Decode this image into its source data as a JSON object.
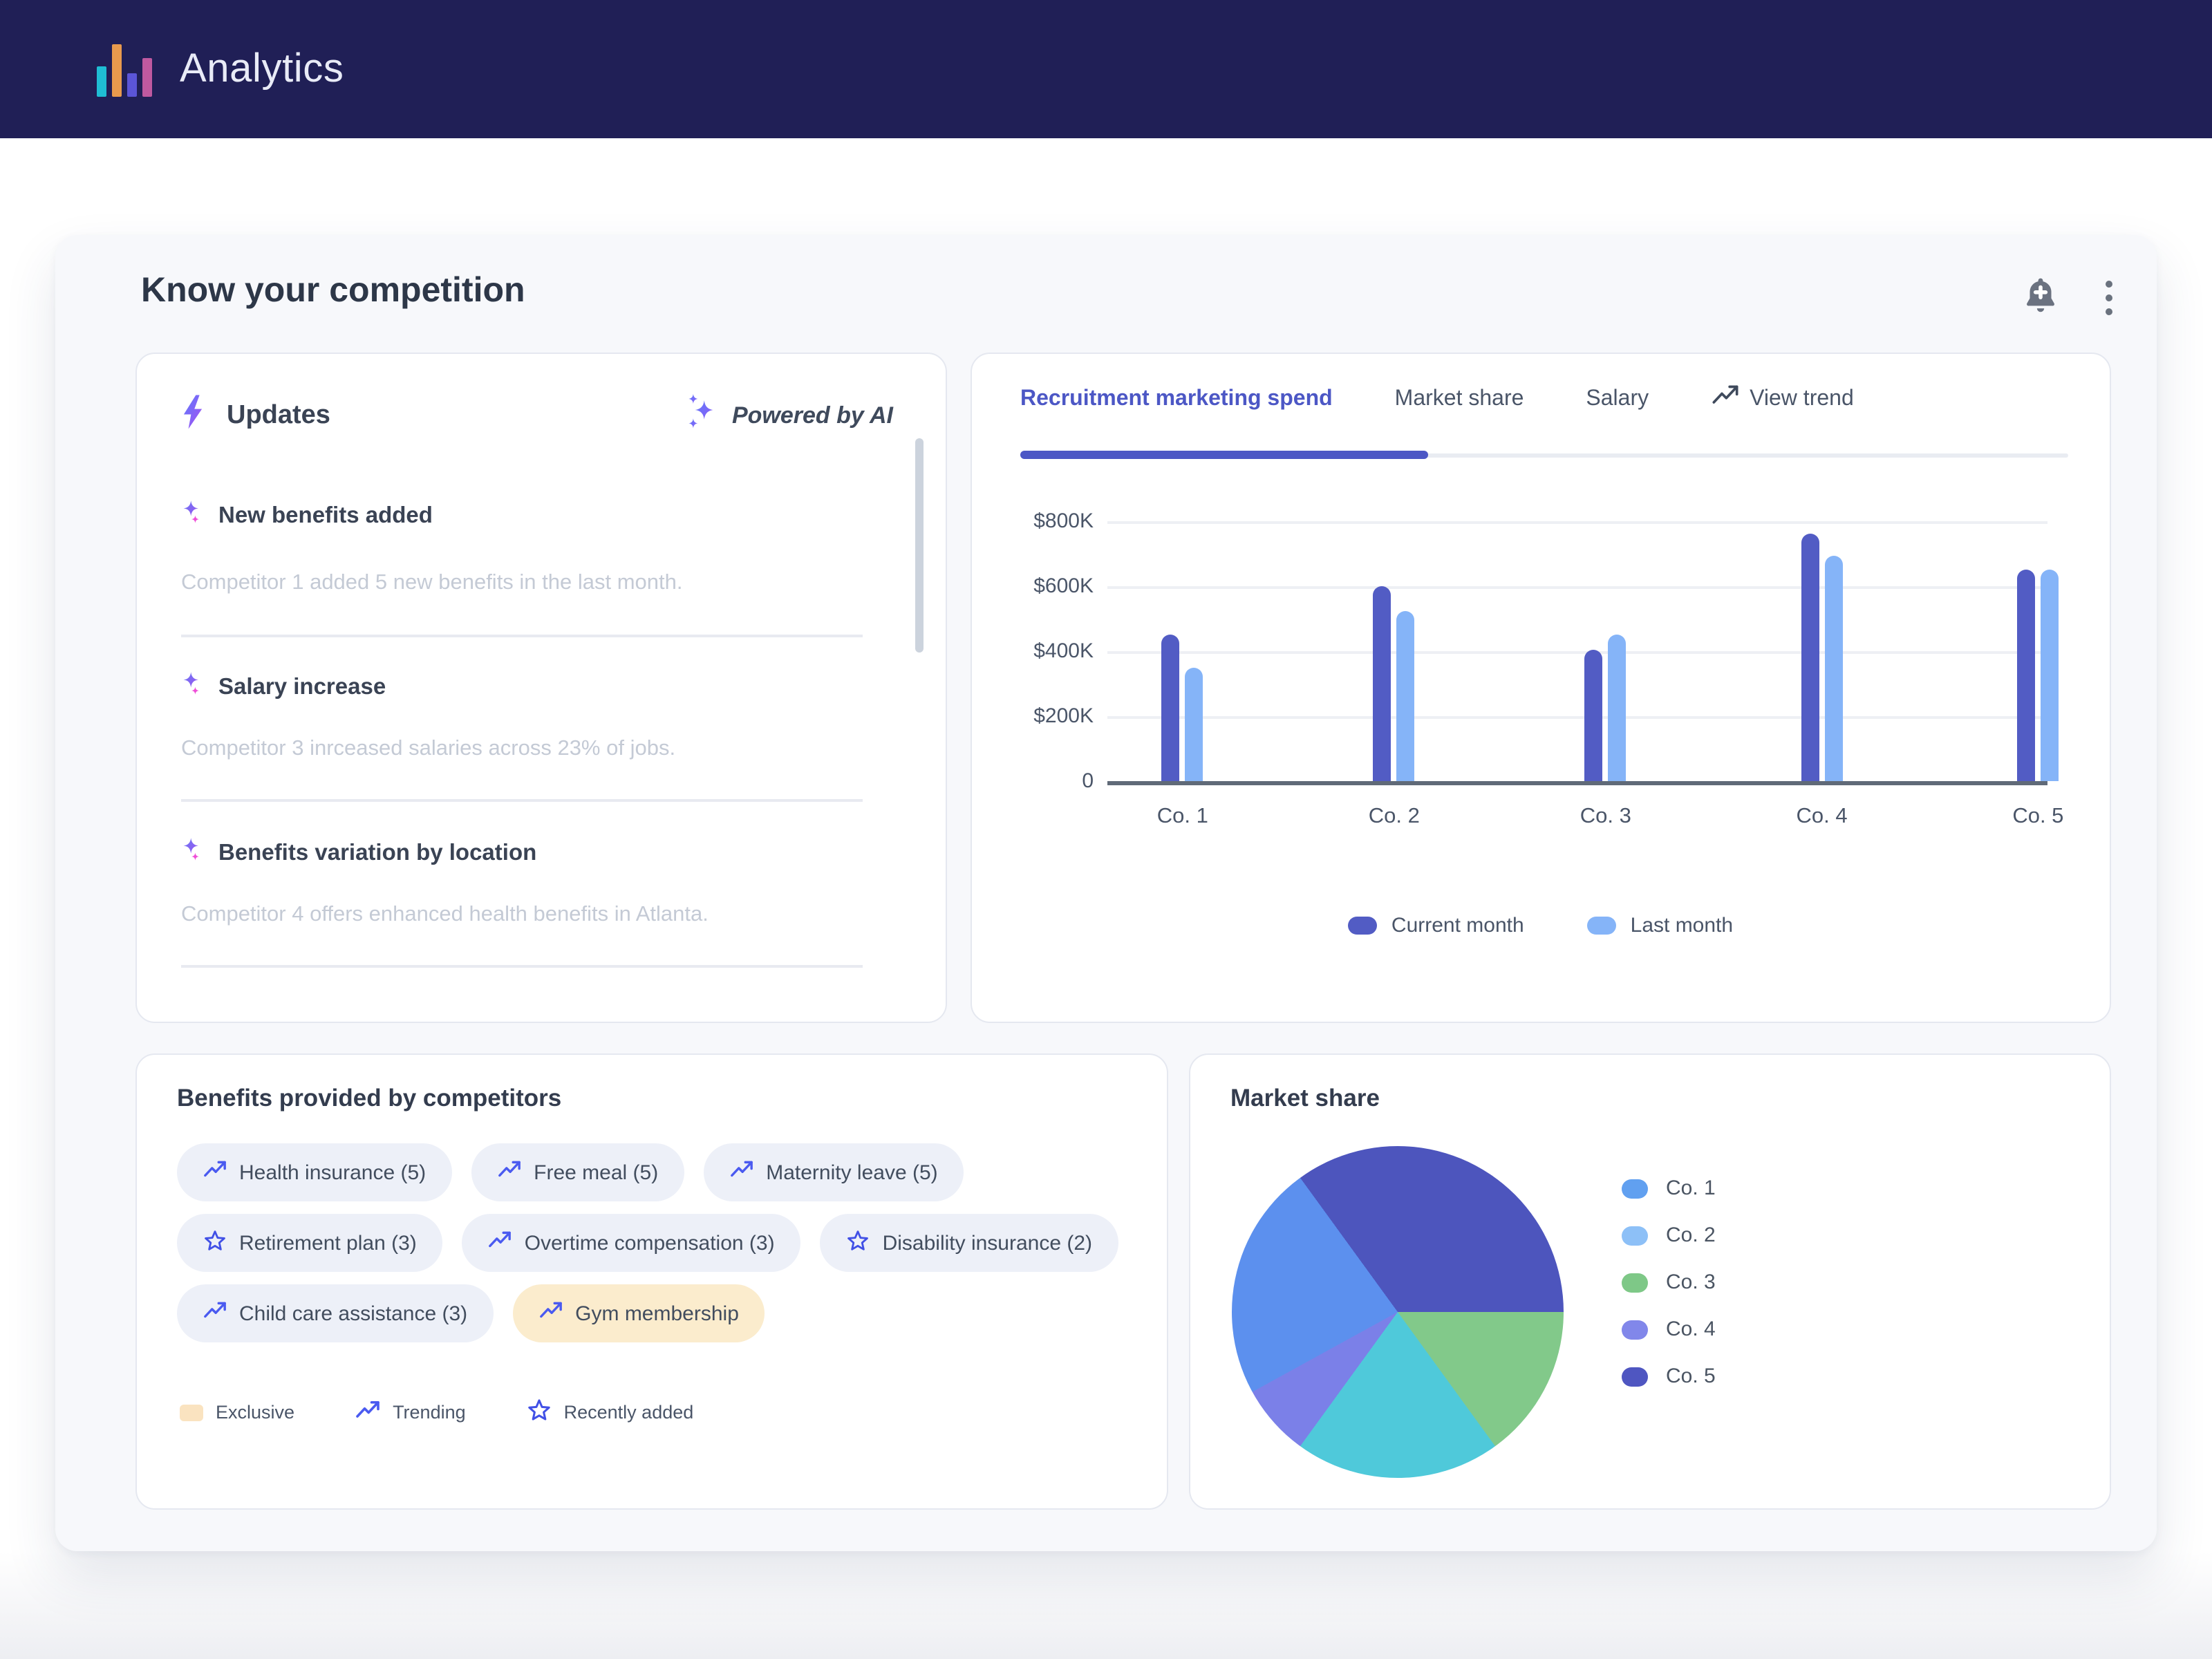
{
  "header": {
    "app_title": "Analytics",
    "logo_bar_colors": [
      "#1fbdd4",
      "#e89a4d",
      "#5b55d7",
      "#bf59a0"
    ]
  },
  "card": {
    "title": "Know your competition"
  },
  "updates": {
    "title": "Updates",
    "powered_by": "Powered by AI",
    "items": [
      {
        "title": "New benefits added",
        "description": "Competitor 1 added 5 new benefits in the last month."
      },
      {
        "title": "Salary increase",
        "description": "Competitor 3 inrceased salaries across 23% of jobs."
      },
      {
        "title": "Benefits variation by location",
        "description": "Competitor 4 offers enhanced health benefits in Atlanta."
      }
    ]
  },
  "tabs": {
    "items": [
      {
        "label": "Recruitment marketing spend",
        "active": true
      },
      {
        "label": "Market share",
        "active": false
      },
      {
        "label": "Salary",
        "active": false
      },
      {
        "label": "View trend",
        "active": false,
        "icon": "trending-up"
      }
    ]
  },
  "chart_data": [
    {
      "type": "bar",
      "title": "Recruitment marketing spend",
      "categories": [
        "Co. 1",
        "Co. 2",
        "Co. 3",
        "Co. 4",
        "Co. 5"
      ],
      "series": [
        {
          "name": "Current month",
          "color": "#525cc4",
          "values": [
            450000,
            600000,
            405000,
            760000,
            650000
          ]
        },
        {
          "name": "Last month",
          "color": "#85b4f8",
          "values": [
            350000,
            525000,
            450000,
            695000,
            650000
          ]
        }
      ],
      "yticks": [
        "$800K",
        "$600K",
        "$400K",
        "$200K",
        "0"
      ],
      "ylim": [
        0,
        800000
      ],
      "grid": true,
      "legend_position": "bottom"
    },
    {
      "type": "pie",
      "title": "Market share",
      "labels": [
        "Co. 1",
        "Co. 2",
        "Co. 3",
        "Co. 4",
        "Co. 5"
      ],
      "values_pct": [
        23,
        20,
        15,
        7,
        35
      ],
      "legend_colors": [
        "#61a0f0",
        "#8dc0f7",
        "#7ec887",
        "#8187ea",
        "#4f56c1"
      ],
      "start_angle_deg": 90,
      "slices": [
        {
          "label": "Co. 3",
          "pct": 15,
          "color": "#82c98a"
        },
        {
          "label": "Co. 2",
          "pct": 20,
          "color": "#4fc9da"
        },
        {
          "label": "Co. 4",
          "pct": 7,
          "color": "#7b80e8"
        },
        {
          "label": "Co. 1",
          "pct": 23,
          "color": "#5c90ee"
        },
        {
          "label": "Co. 5",
          "pct": 35,
          "color": "#4d55bd"
        }
      ],
      "legend_position": "right"
    }
  ],
  "benefits": {
    "title": "Benefits provided by competitors",
    "chips": [
      {
        "label": "Health insurance (5)",
        "icon": "trending",
        "style": "default"
      },
      {
        "label": "Free meal (5)",
        "icon": "trending",
        "style": "default"
      },
      {
        "label": "Maternity leave (5)",
        "icon": "trending",
        "style": "default"
      },
      {
        "label": "Retirement plan (3)",
        "icon": "star",
        "style": "default"
      },
      {
        "label": "Overtime compensation (3)",
        "icon": "trending",
        "style": "default"
      },
      {
        "label": "Disability insurance (2)",
        "icon": "star",
        "style": "default"
      },
      {
        "label": "Child care assistance (3)",
        "icon": "trending",
        "style": "default"
      },
      {
        "label": "Gym membership",
        "icon": "trending",
        "style": "exclusive"
      }
    ],
    "legend": [
      {
        "label": "Exclusive",
        "icon": "swatch"
      },
      {
        "label": "Trending",
        "icon": "trending"
      },
      {
        "label": "Recently added",
        "icon": "star"
      }
    ]
  },
  "market": {
    "title": "Market share"
  }
}
